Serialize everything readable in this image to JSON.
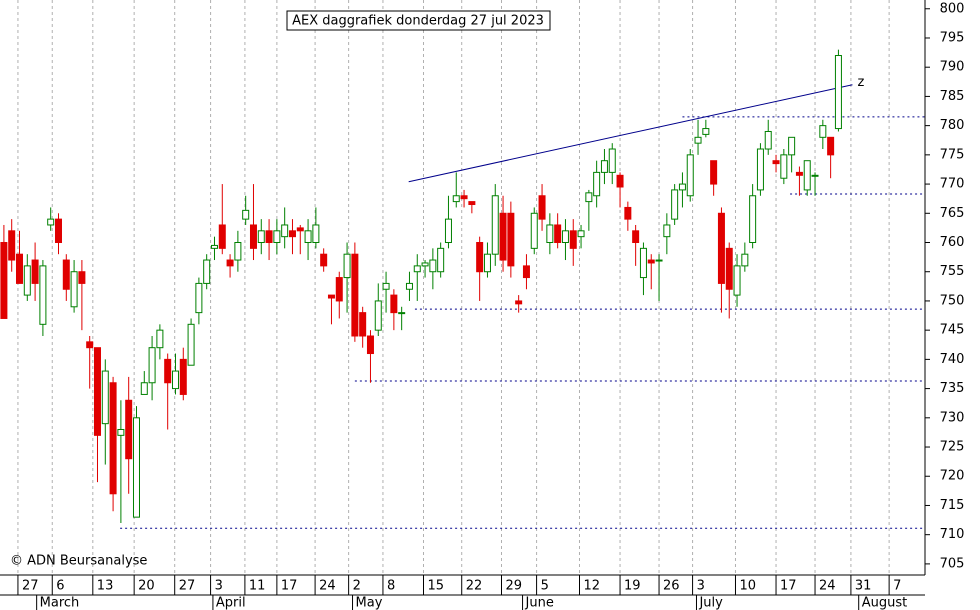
{
  "chart_data": {
    "type": "candlestick",
    "title": "AEX daggrafiek donderdag 27 jul 2023",
    "annotations": {
      "copyright": "© ADN Beursanalyse",
      "trend_label": "z"
    },
    "up_color": "#008000",
    "down_color": "#e00000",
    "line_color": "#00008b",
    "open": [
      760,
      762,
      758,
      751,
      757,
      746,
      763,
      764,
      757,
      749,
      755,
      743,
      742,
      729,
      736,
      727,
      733,
      713,
      734,
      736,
      742,
      740,
      735,
      740,
      739,
      748,
      753,
      759,
      763,
      757,
      757,
      764,
      763,
      760,
      762,
      760,
      761,
      762,
      762.5,
      760,
      760,
      758,
      751,
      754,
      754,
      758,
      748,
      744,
      745,
      752,
      751,
      748,
      752,
      755,
      756,
      755,
      755,
      760,
      767,
      768,
      767,
      760,
      755,
      758,
      765,
      765,
      750,
      756,
      759,
      768,
      760,
      763,
      760,
      762,
      761,
      767,
      768,
      772,
      772,
      771.5,
      766,
      762,
      754,
      757,
      757,
      761,
      764,
      769,
      768,
      777,
      778.5,
      774,
      765,
      759,
      751,
      756,
      760,
      769,
      776,
      774,
      771,
      775,
      772,
      769,
      771.5,
      778,
      778,
      779.5
    ],
    "high": [
      763,
      764,
      762,
      758,
      760,
      757,
      766,
      765,
      758,
      757,
      757,
      744,
      742,
      740,
      737,
      733,
      737,
      732,
      738,
      744,
      746,
      741,
      741,
      742,
      747,
      754,
      758,
      761,
      770,
      758,
      762,
      768,
      770,
      764,
      764,
      764,
      766,
      764,
      763,
      764,
      766,
      759,
      751,
      755,
      760,
      760,
      749,
      745,
      753,
      755,
      752,
      749,
      755,
      758,
      757,
      759,
      760,
      768,
      772,
      769,
      767,
      761,
      760,
      770,
      768,
      767,
      751,
      758,
      766,
      770,
      765,
      765,
      764,
      764,
      763,
      769,
      774,
      776,
      777,
      772,
      767,
      763,
      760,
      758,
      758,
      765,
      770,
      772,
      776,
      781,
      781,
      774,
      766,
      760,
      758,
      760,
      770,
      777,
      781,
      775,
      776,
      778,
      773,
      774,
      772,
      781,
      778,
      793
    ],
    "low": [
      747,
      755,
      753,
      750,
      750,
      744,
      762,
      758,
      750,
      748,
      745,
      735,
      719,
      722,
      714,
      712,
      717,
      713,
      734,
      733,
      740,
      728,
      734,
      733,
      739,
      746,
      752,
      757,
      758,
      754,
      755,
      763,
      757,
      758,
      757,
      758,
      759,
      758,
      758,
      757,
      759,
      755,
      746,
      747,
      748,
      743,
      742,
      736,
      744,
      748,
      745,
      745,
      750,
      750,
      754,
      752,
      754,
      759,
      766,
      766,
      765,
      750,
      754,
      756,
      755,
      754,
      748,
      752,
      758,
      762,
      758,
      759,
      757,
      756,
      759,
      762,
      766,
      770,
      770,
      766,
      762,
      756,
      751,
      752,
      750,
      758,
      763,
      766,
      767,
      775,
      778,
      768,
      748,
      747,
      749,
      755,
      759,
      768,
      775,
      772,
      770,
      772,
      768,
      768,
      768,
      776,
      771,
      779
    ],
    "close": [
      747,
      757,
      753,
      756,
      753,
      756,
      764,
      760,
      752,
      755,
      753,
      742,
      727,
      738,
      717,
      728,
      723,
      730,
      736,
      742,
      745,
      736,
      738,
      734,
      746,
      753,
      757,
      759.5,
      759,
      756,
      760,
      765.5,
      759,
      762,
      760,
      762,
      763,
      761,
      762,
      762,
      763,
      756,
      750.5,
      750,
      758,
      744,
      744,
      741,
      750,
      753,
      748,
      748,
      753,
      756,
      756.5,
      757,
      759,
      764,
      768,
      767.5,
      766.5,
      755,
      758,
      768,
      757,
      756,
      749.5,
      754,
      765,
      764,
      763,
      760,
      762,
      759,
      762,
      768.5,
      772,
      774,
      776,
      769.5,
      764,
      760,
      759,
      756.5,
      757,
      763,
      769,
      770,
      775,
      778,
      779.5,
      770,
      753,
      752,
      756,
      758,
      768,
      776,
      779,
      773.5,
      775,
      778,
      771.5,
      774,
      771.5,
      780,
      775,
      792
    ],
    "trendline": {
      "x": [
        51.9,
        108.8
      ],
      "y": [
        770.4,
        787.0
      ]
    },
    "levels": [
      {
        "value": 781.5,
        "start": 87
      },
      {
        "value": 768.3,
        "start": 100.8
      },
      {
        "value": 748.6,
        "start": 52.7
      },
      {
        "value": 736.3,
        "start": 45
      },
      {
        "value": 711.1,
        "start": 14.9
      }
    ],
    "xlim": [
      -0.5,
      118.1
    ],
    "ylim": [
      703.1,
      801.5
    ],
    "yticks": [
      705,
      710,
      715,
      720,
      725,
      730,
      735,
      740,
      745,
      750,
      755,
      760,
      765,
      770,
      775,
      780,
      785,
      790,
      795,
      800
    ],
    "xticks": [
      {
        "value": 1.8,
        "label": "27"
      },
      {
        "value": 6.2,
        "label": "6"
      },
      {
        "value": 11.4,
        "label": "13"
      },
      {
        "value": 16.7,
        "label": "20"
      },
      {
        "value": 21.9,
        "label": "27"
      },
      {
        "value": 26.5,
        "label": "3"
      },
      {
        "value": 30.9,
        "label": "11"
      },
      {
        "value": 35,
        "label": "17"
      },
      {
        "value": 39.9,
        "label": "24"
      },
      {
        "value": 44.2,
        "label": "2"
      },
      {
        "value": 48.6,
        "label": "8"
      },
      {
        "value": 53.8,
        "label": "15"
      },
      {
        "value": 58.7,
        "label": "22"
      },
      {
        "value": 63.8,
        "label": "29"
      },
      {
        "value": 68.3,
        "label": "5"
      },
      {
        "value": 73.8,
        "label": "12"
      },
      {
        "value": 79,
        "label": "19"
      },
      {
        "value": 84,
        "label": "26"
      },
      {
        "value": 88.3,
        "label": "3"
      },
      {
        "value": 93.8,
        "label": "10"
      },
      {
        "value": 99,
        "label": "17"
      },
      {
        "value": 104,
        "label": "24"
      },
      {
        "value": 108.6,
        "label": "31"
      },
      {
        "value": 113.5,
        "label": "7"
      }
    ],
    "month_ticks": [
      {
        "value": 4.2,
        "label": "March"
      },
      {
        "value": 26.8,
        "label": "April"
      },
      {
        "value": 44.7,
        "label": "May"
      },
      {
        "value": 66.5,
        "label": "June"
      },
      {
        "value": 88.8,
        "label": "July"
      },
      {
        "value": 109.6,
        "label": "August"
      }
    ],
    "grid": true
  }
}
